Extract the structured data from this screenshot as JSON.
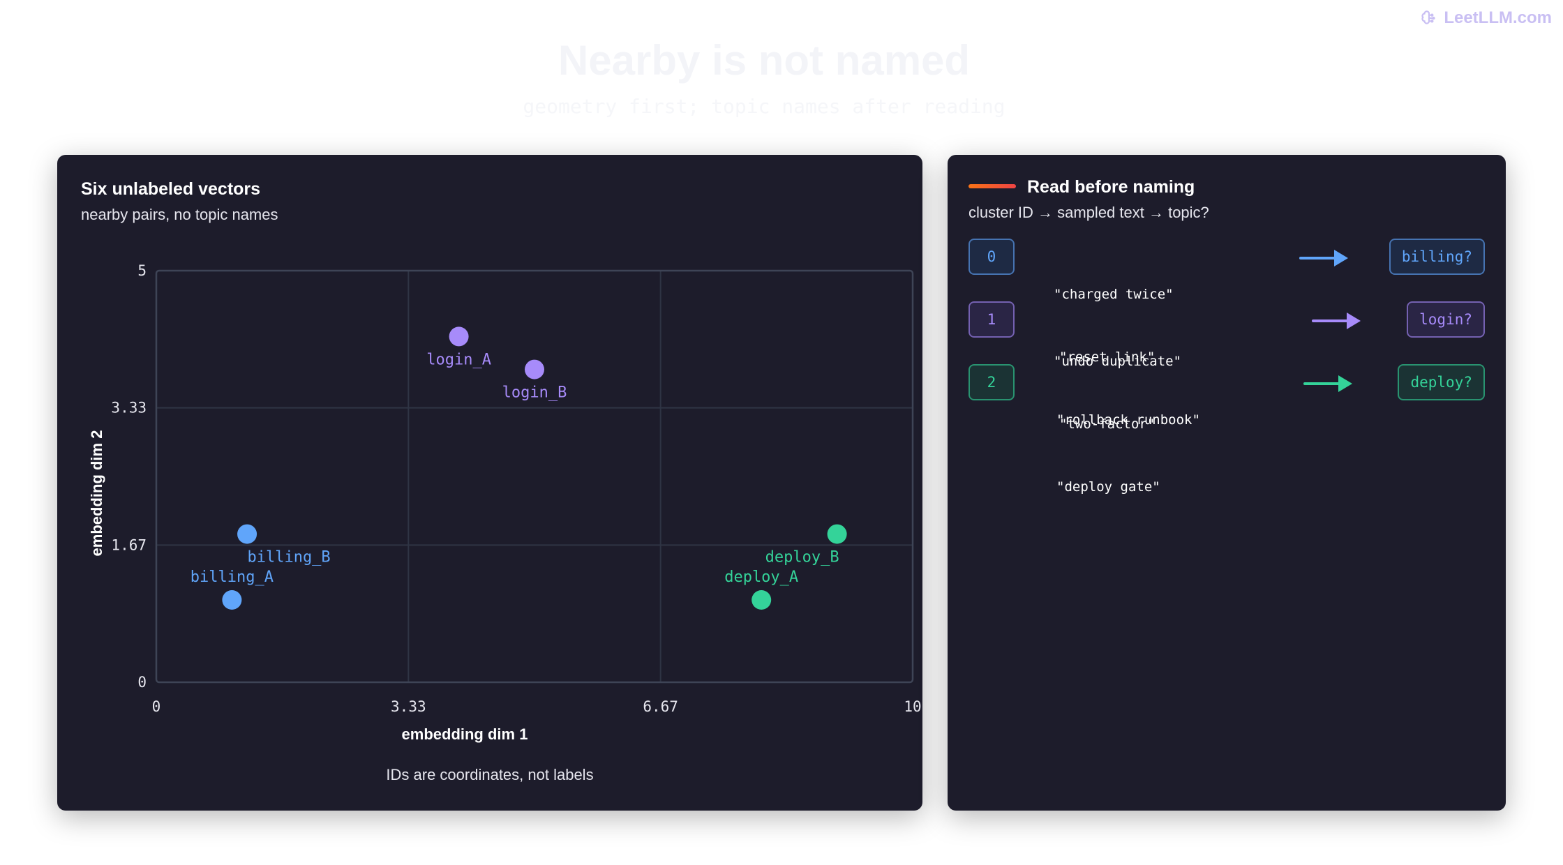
{
  "brand": {
    "name": "LeetLLM.com",
    "icon": "brain-icon"
  },
  "header": {
    "title": "Nearby is not named",
    "subtitle": "geometry first; topic names after reading"
  },
  "plot_panel": {
    "title": "Six unlabeled vectors",
    "subtitle": "nearby pairs, no topic names",
    "footnote": "IDs are coordinates, not labels"
  },
  "chart_data": {
    "type": "scatter",
    "xlabel": "embedding dim 1",
    "ylabel": "embedding dim 2",
    "xlim": [
      0,
      10
    ],
    "ylim": [
      0,
      5
    ],
    "x_ticks": [
      "0",
      "3.33",
      "6.67",
      "10"
    ],
    "y_ticks": [
      "0",
      "1.67",
      "3.33",
      "5"
    ],
    "grid": true,
    "points": [
      {
        "label": "login_A",
        "x": 4.0,
        "y": 4.2,
        "color": "#a78bfa"
      },
      {
        "label": "login_B",
        "x": 5.0,
        "y": 3.8,
        "color": "#a78bfa"
      },
      {
        "label": "billing_B",
        "x": 1.2,
        "y": 1.8,
        "color": "#60a5fa"
      },
      {
        "label": "billing_A",
        "x": 1.0,
        "y": 1.0,
        "color": "#60a5fa"
      },
      {
        "label": "deploy_B",
        "x": 9.0,
        "y": 1.8,
        "color": "#34d399"
      },
      {
        "label": "deploy_A",
        "x": 8.0,
        "y": 1.0,
        "color": "#34d399"
      }
    ]
  },
  "legend_panel": {
    "title": "Read before naming",
    "subtitle": "cluster ID → sampled text → topic?",
    "rows": [
      {
        "id": "0",
        "texts": [
          "\"charged twice\"",
          "\"undo duplicate\""
        ],
        "topic": "billing?",
        "color": "#60a5fa",
        "fill": "#1e2a44"
      },
      {
        "id": "1",
        "texts": [
          "\"reset link\"",
          "\"two-factor\""
        ],
        "topic": "login?",
        "color": "#a78bfa",
        "fill": "#2a2545"
      },
      {
        "id": "2",
        "texts": [
          "\"rollback runbook\"",
          "\"deploy gate\""
        ],
        "topic": "deploy?",
        "color": "#34d399",
        "fill": "#1b3334"
      }
    ]
  }
}
